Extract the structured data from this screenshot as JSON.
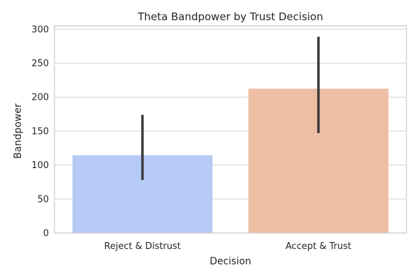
{
  "chart_data": {
    "type": "bar",
    "title": "Theta Bandpower by Trust Decision",
    "xlabel": "Decision",
    "ylabel": "Bandpower",
    "categories": [
      "Reject & Distrust",
      "Accept & Trust"
    ],
    "values": [
      115,
      213
    ],
    "error_low": [
      78,
      147
    ],
    "error_high": [
      174,
      289
    ],
    "ylim": [
      0,
      305
    ],
    "yticks": [
      0,
      50,
      100,
      150,
      200,
      250,
      300
    ],
    "grid": true,
    "colors": [
      "#b5cbf5",
      "#eebea4"
    ]
  }
}
